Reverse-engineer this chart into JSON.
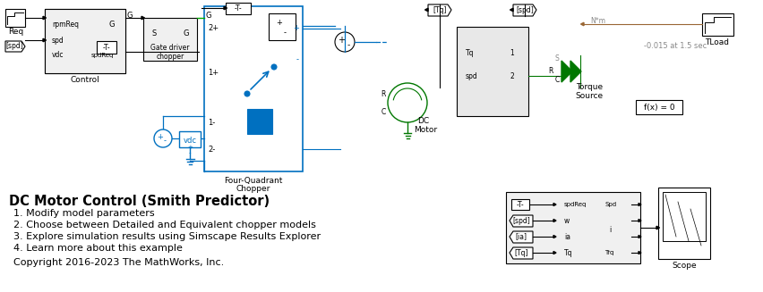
{
  "title": "DC Motor Control (Smith Predictor)",
  "bg_color": "#ffffff",
  "bullet_points": [
    "1. Modify model parameters",
    "2. Choose between Detailed and Equivalent chopper models",
    "3. Explore simulation results using Simscape Results Explorer",
    "4. Learn more about this example"
  ],
  "copyright": "Copyright 2016-2023 The MathWorks, Inc.",
  "title_fontsize": 10.5,
  "body_fontsize": 8,
  "blue": "#0070c0",
  "green": "#00aa00",
  "dark_green": "#007700",
  "brown": "#996633",
  "gray": "#888888",
  "light_gray": "#d0d0d0",
  "block_gray": "#e8e8e8"
}
